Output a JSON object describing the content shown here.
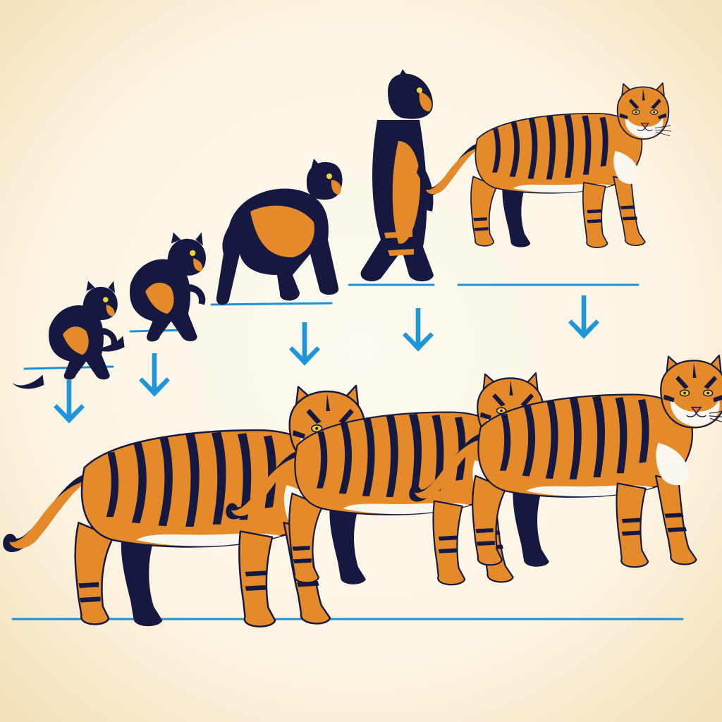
{
  "colors": {
    "background_edge": "#f3dfb8",
    "background_center": "#fdfbf2",
    "ink": "#16193f",
    "tiger_orange": "#e48a2a",
    "tiger_light": "#f6ad4d",
    "fur_white": "#fbf7ee",
    "shadow_blue": "#c9d6ee",
    "ground_blue": "#1f8fd6",
    "arrow_blue": "#1f96d8"
  },
  "illustration": {
    "top_row": [
      {
        "stage": 1,
        "form": "small-dark-primate-cat",
        "pose": "hunched"
      },
      {
        "stage": 2,
        "form": "small-dark-primate-cat",
        "pose": "crouched"
      },
      {
        "stage": 3,
        "form": "dark-quadruped-cat",
        "pose": "knuckle-walking"
      },
      {
        "stage": 4,
        "form": "upright-dark-cat",
        "pose": "bipedal-walking"
      },
      {
        "stage": 5,
        "form": "striped-tiger",
        "pose": "walking"
      }
    ],
    "bottom_row": [
      {
        "stage": 6,
        "form": "striped-tiger",
        "pose": "walking"
      },
      {
        "stage": 7,
        "form": "striped-tiger",
        "pose": "walking"
      },
      {
        "stage": 8,
        "form": "striped-tiger",
        "pose": "walking"
      }
    ],
    "arrow_count": 5,
    "arrow_icon": "down-arrow-icon"
  }
}
